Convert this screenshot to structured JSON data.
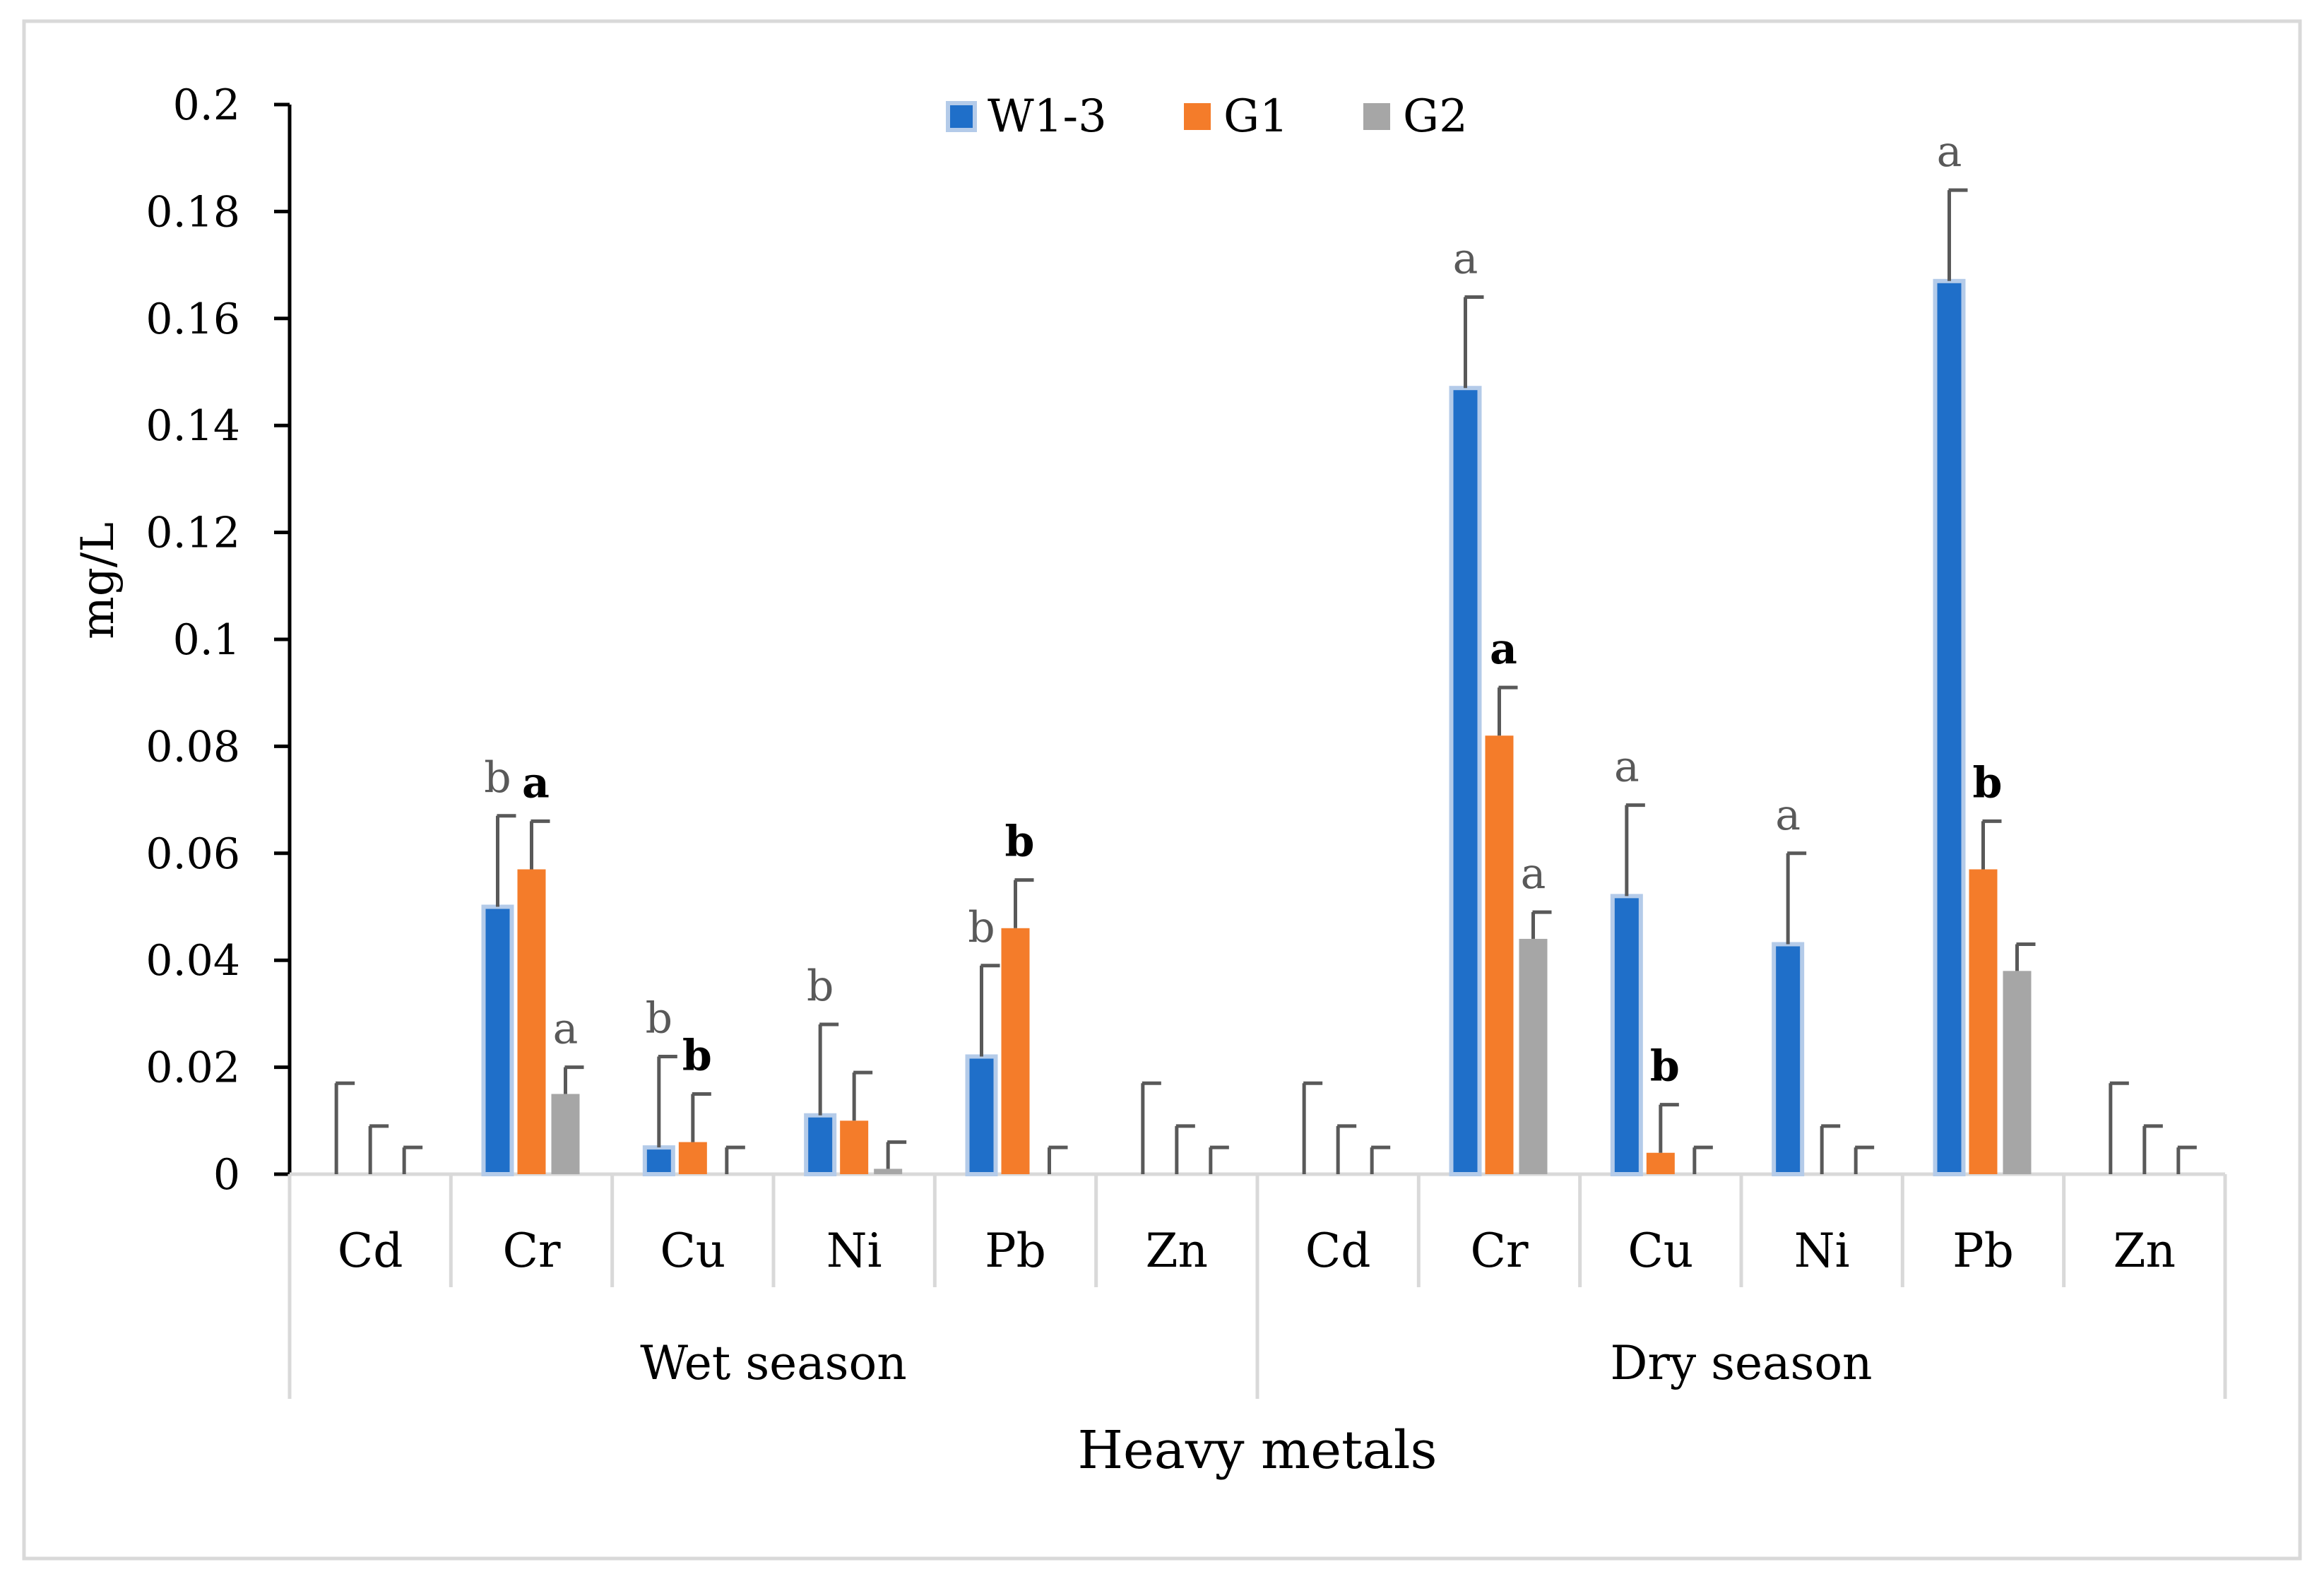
{
  "chart_data": {
    "type": "bar",
    "title": "",
    "ylabel": "mg/L",
    "xlabel": "Heavy metals",
    "ylim": [
      0,
      0.2
    ],
    "yticks": [
      "0",
      "0.02",
      "0.04",
      "0.06",
      "0.08",
      "0.1",
      "0.12",
      "0.14",
      "0.16",
      "0.18",
      "0.2"
    ],
    "ytick_values": [
      0,
      0.02,
      0.04,
      0.06,
      0.08,
      0.1,
      0.12,
      0.14,
      0.16,
      0.18,
      0.2
    ],
    "grid": false,
    "legend_position": "top-center",
    "groups": [
      {
        "label": "Wet season",
        "categories": [
          "Cd",
          "Cr",
          "Cu",
          "Ni",
          "Pb",
          "Zn"
        ]
      },
      {
        "label": "Dry season",
        "categories": [
          "Cd",
          "Cr",
          "Cu",
          "Ni",
          "Pb",
          "Zn"
        ]
      }
    ],
    "series": [
      {
        "name": "W1-3",
        "color": "#1f6fc9",
        "values": [
          0,
          0.05,
          0.005,
          0.011,
          0.022,
          0,
          0,
          0.147,
          0.052,
          0.043,
          0.167,
          0
        ],
        "errors": [
          0.017,
          0.017,
          0.017,
          0.017,
          0.017,
          0.017,
          0.017,
          0.017,
          0.017,
          0.017,
          0.017,
          0.017
        ],
        "labels": [
          "",
          "b",
          "b",
          "b",
          "b",
          "",
          "",
          "a",
          "a",
          "a",
          "a",
          ""
        ]
      },
      {
        "name": "G1",
        "color": "#f47c2a",
        "values": [
          0,
          0.057,
          0.006,
          0.01,
          0.046,
          0,
          0,
          0.082,
          0.004,
          0,
          0.057,
          0
        ],
        "errors": [
          0.009,
          0.009,
          0.009,
          0.009,
          0.009,
          0.009,
          0.009,
          0.009,
          0.009,
          0.009,
          0.009,
          0.009
        ],
        "labels": [
          "",
          "a",
          "b",
          "",
          "b",
          "",
          "",
          "a",
          "b",
          "",
          "b",
          ""
        ]
      },
      {
        "name": "G2",
        "color": "#a6a6a6",
        "values": [
          0,
          0.015,
          0,
          0.001,
          0,
          0,
          0,
          0.044,
          0,
          0,
          0.038,
          0
        ],
        "errors": [
          0.005,
          0.005,
          0.005,
          0.005,
          0.005,
          0.005,
          0.005,
          0.005,
          0.005,
          0.005,
          0.005,
          0.005
        ],
        "labels": [
          "",
          "a",
          "",
          "",
          "",
          "",
          "",
          "a",
          "",
          "",
          "",
          ""
        ]
      }
    ]
  }
}
